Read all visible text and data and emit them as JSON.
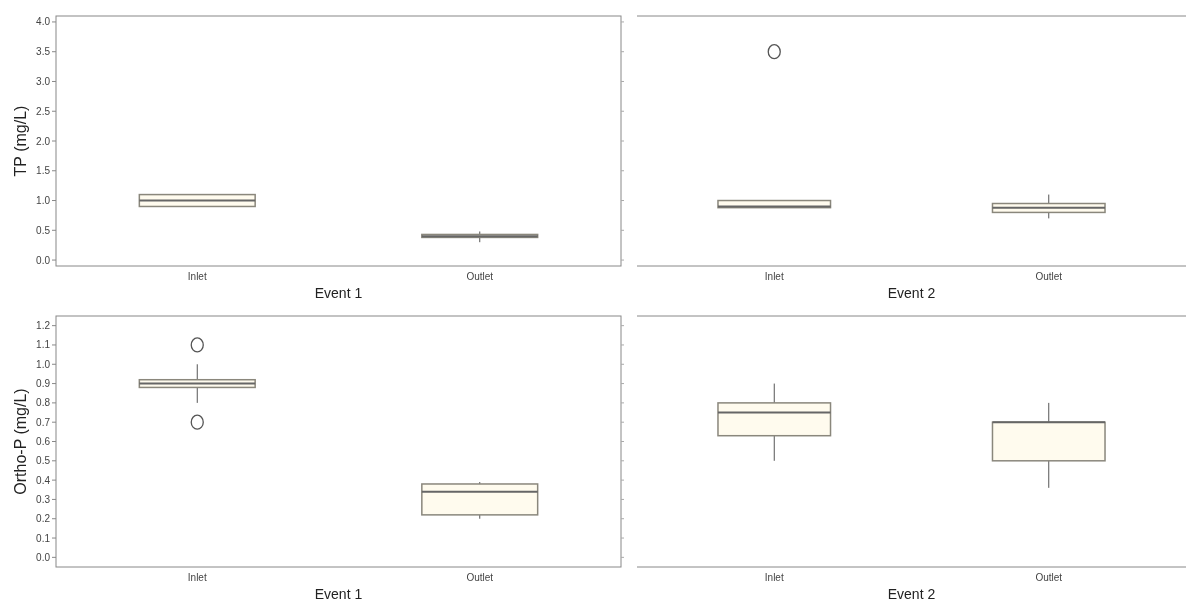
{
  "chart_data": [
    {
      "type": "box",
      "ylabel": "TP (mg/L)",
      "xlabel": "Event 1",
      "categories": [
        "Inlet",
        "Outlet"
      ],
      "color": "#fffbee",
      "ylim": [
        -0.1,
        4.1
      ],
      "yticks": [
        {
          "value": 0,
          "label": "0.0"
        },
        {
          "value": 0.5,
          "label": "0.5"
        },
        {
          "value": 1,
          "label": "1.0"
        },
        {
          "value": 1.5,
          "label": "1.5"
        },
        {
          "value": 2,
          "label": "2.0"
        },
        {
          "value": 2.5,
          "label": "2.5"
        },
        {
          "value": 3,
          "label": "3.0"
        },
        {
          "value": 3.5,
          "label": "3.5"
        },
        {
          "value": 4,
          "label": "4.0"
        }
      ],
      "boxes": [
        {
          "low": 0.9,
          "q1": 0.9,
          "median": 1.0,
          "q3": 1.1,
          "high": 1.1
        },
        {
          "low": 0.3,
          "q1": 0.38,
          "median": 0.4,
          "q3": 0.43,
          "high": 0.48
        }
      ]
    },
    {
      "type": "box",
      "xlabel": "Event 2",
      "categories": [
        "Inlet",
        "Outlet"
      ],
      "color": "#fffbee",
      "ylim": [
        -0.1,
        4.1
      ],
      "tick_labels": "x",
      "boxes": [
        {
          "low": 0.88,
          "q1": 0.88,
          "median": 0.9,
          "q3": 1.0,
          "high": 1.0,
          "outliers": [
            3.5
          ]
        },
        {
          "low": 0.7,
          "q1": 0.8,
          "median": 0.88,
          "q3": 0.95,
          "high": 1.1
        }
      ]
    },
    {
      "type": "box",
      "ylabel": "Ortho-P (mg/L)",
      "xlabel": "Event 1",
      "categories": [
        "Inlet",
        "Outlet"
      ],
      "color": "#fffbee",
      "ylim": [
        -0.05,
        1.25
      ],
      "yticks": [
        {
          "value": 0,
          "label": "0.0"
        },
        {
          "value": 0.1,
          "label": "0.1"
        },
        {
          "value": 0.2,
          "label": "0.2"
        },
        {
          "value": 0.3,
          "label": "0.3"
        },
        {
          "value": 0.4,
          "label": "0.4"
        },
        {
          "value": 0.5,
          "label": "0.5"
        },
        {
          "value": 0.6,
          "label": "0.6"
        },
        {
          "value": 0.7,
          "label": "0.7"
        },
        {
          "value": 0.8,
          "label": "0.8"
        },
        {
          "value": 0.9,
          "label": "0.9"
        },
        {
          "value": 1,
          "label": "1.0"
        },
        {
          "value": 1.1,
          "label": "1.1"
        },
        {
          "value": 1.2,
          "label": "1.2"
        }
      ],
      "boxes": [
        {
          "low": 0.8,
          "q1": 0.88,
          "median": 0.9,
          "q3": 0.92,
          "high": 1.0,
          "outliers": [
            1.1,
            0.7
          ]
        },
        {
          "low": 0.2,
          "q1": 0.22,
          "median": 0.34,
          "q3": 0.38,
          "high": 0.39
        }
      ]
    },
    {
      "type": "box",
      "xlabel": "Event 2",
      "categories": [
        "Inlet",
        "Outlet"
      ],
      "color": "#fffbee",
      "ylim": [
        -0.05,
        1.25
      ],
      "tick_labels": "x",
      "boxes": [
        {
          "low": 0.5,
          "q1": 0.63,
          "median": 0.75,
          "q3": 0.8,
          "high": 0.9
        },
        {
          "low": 0.36,
          "q1": 0.5,
          "median": 0.7,
          "q3": 0.7,
          "high": 0.8
        }
      ]
    }
  ]
}
